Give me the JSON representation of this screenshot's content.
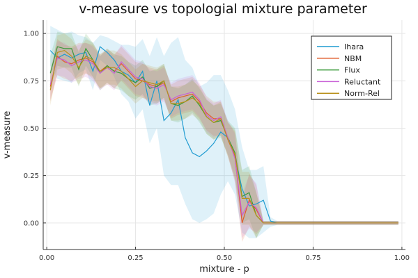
{
  "chart_data": {
    "type": "line",
    "title": "v-measure vs topologial mixture parameter",
    "xlabel": "mixture - p",
    "ylabel": "v-measure",
    "xlim": [
      -0.01,
      1.01
    ],
    "ylim": [
      -0.14,
      1.07
    ],
    "xticks": [
      "0.00",
      "0.25",
      "0.50",
      "0.75",
      "1.00"
    ],
    "yticks": [
      "0.00",
      "0.25",
      "0.50",
      "0.75",
      "1.00"
    ],
    "grid": true,
    "legend_position": "top-right",
    "x": [
      0.01,
      0.03,
      0.05,
      0.07,
      0.09,
      0.11,
      0.13,
      0.15,
      0.17,
      0.19,
      0.21,
      0.23,
      0.25,
      0.27,
      0.29,
      0.31,
      0.33,
      0.35,
      0.37,
      0.39,
      0.41,
      0.43,
      0.45,
      0.47,
      0.49,
      0.51,
      0.53,
      0.55,
      0.57,
      0.59,
      0.61,
      0.63,
      0.65,
      0.67,
      0.69,
      0.71,
      0.73,
      0.75,
      0.77,
      0.79,
      0.81,
      0.83,
      0.85,
      0.87,
      0.89,
      0.91,
      0.93,
      0.95,
      0.97,
      0.99
    ],
    "series": [
      {
        "name": "Ihara",
        "color": "#1f9bd1",
        "band_opacity": 0.14,
        "values": [
          0.91,
          0.87,
          0.89,
          0.87,
          0.89,
          0.9,
          0.8,
          0.93,
          0.9,
          0.86,
          0.8,
          0.78,
          0.74,
          0.8,
          0.62,
          0.75,
          0.54,
          0.58,
          0.65,
          0.45,
          0.37,
          0.35,
          0.38,
          0.42,
          0.48,
          0.45,
          0.35,
          0.18,
          0.09,
          0.1,
          0.12,
          0.01,
          0.0,
          0.0,
          0.0,
          0.0,
          0.0,
          0.0,
          0.0,
          0.0,
          0.0,
          0.0,
          0.0,
          0.0,
          0.0,
          0.0,
          0.0,
          0.0,
          0.0,
          0.0
        ],
        "lower": [
          0.83,
          0.76,
          0.75,
          0.74,
          0.79,
          0.81,
          0.7,
          0.86,
          0.83,
          0.77,
          0.68,
          0.64,
          0.55,
          0.6,
          0.42,
          0.5,
          0.25,
          0.2,
          0.2,
          0.1,
          0.02,
          0.0,
          0.02,
          0.05,
          0.15,
          0.22,
          0.15,
          -0.05,
          -0.08,
          -0.08,
          -0.05,
          -0.02,
          -0.01,
          -0.01,
          -0.01,
          -0.01,
          -0.01,
          -0.01,
          -0.01,
          -0.01,
          -0.01,
          -0.01,
          -0.01,
          -0.01,
          -0.01,
          -0.01,
          -0.01,
          -0.01,
          -0.01,
          -0.01
        ],
        "upper": [
          1.04,
          1.02,
          1.0,
          1.01,
          0.99,
          0.98,
          0.95,
          0.99,
          0.98,
          0.96,
          0.94,
          0.94,
          0.93,
          0.97,
          0.88,
          0.98,
          0.88,
          0.95,
          0.98,
          0.86,
          0.82,
          0.72,
          0.74,
          0.78,
          0.78,
          0.7,
          0.6,
          0.4,
          0.28,
          0.28,
          0.3,
          0.03,
          0.01,
          0.01,
          0.01,
          0.01,
          0.01,
          0.01,
          0.01,
          0.01,
          0.01,
          0.01,
          0.01,
          0.01,
          0.01,
          0.01,
          0.01,
          0.01,
          0.01,
          0.01
        ]
      },
      {
        "name": "NBM",
        "color": "#e05c2b",
        "band_opacity": 0.15,
        "values": [
          0.72,
          0.88,
          0.85,
          0.84,
          0.86,
          0.87,
          0.85,
          0.8,
          0.83,
          0.8,
          0.84,
          0.8,
          0.76,
          0.75,
          0.73,
          0.72,
          0.74,
          0.64,
          0.66,
          0.67,
          0.68,
          0.64,
          0.58,
          0.55,
          0.55,
          0.44,
          0.35,
          0.0,
          0.12,
          0.07,
          0.0,
          0.0,
          0.0,
          0.0,
          0.0,
          0.0,
          0.0,
          0.0,
          0.0,
          0.0,
          0.0,
          0.0,
          0.0,
          0.0,
          0.0,
          0.0,
          0.0,
          0.0,
          0.0,
          0.0
        ],
        "lower": [
          0.64,
          0.78,
          0.76,
          0.75,
          0.77,
          0.79,
          0.76,
          0.71,
          0.74,
          0.71,
          0.75,
          0.71,
          0.67,
          0.66,
          0.64,
          0.63,
          0.65,
          0.55,
          0.57,
          0.58,
          0.59,
          0.55,
          0.49,
          0.46,
          0.46,
          0.35,
          0.22,
          -0.1,
          -0.02,
          -0.06,
          -0.01,
          -0.01,
          -0.01,
          -0.01,
          -0.01,
          -0.01,
          -0.01,
          -0.01,
          -0.01,
          -0.01,
          -0.01,
          -0.01,
          -0.01,
          -0.01,
          -0.01,
          -0.01,
          -0.01,
          -0.01,
          -0.01,
          -0.01
        ],
        "upper": [
          0.8,
          0.97,
          0.94,
          0.93,
          0.95,
          0.95,
          0.94,
          0.89,
          0.92,
          0.89,
          0.93,
          0.89,
          0.85,
          0.84,
          0.82,
          0.81,
          0.83,
          0.73,
          0.75,
          0.76,
          0.77,
          0.73,
          0.67,
          0.64,
          0.64,
          0.53,
          0.48,
          0.12,
          0.26,
          0.2,
          0.01,
          0.01,
          0.01,
          0.01,
          0.01,
          0.01,
          0.01,
          0.01,
          0.01,
          0.01,
          0.01,
          0.01,
          0.01,
          0.01,
          0.01,
          0.01,
          0.01,
          0.01,
          0.01,
          0.01
        ]
      },
      {
        "name": "Flux",
        "color": "#3a9a3a",
        "band_opacity": 0.15,
        "values": [
          0.79,
          0.93,
          0.92,
          0.92,
          0.81,
          0.92,
          0.86,
          0.79,
          0.83,
          0.8,
          0.79,
          0.76,
          0.74,
          0.77,
          0.71,
          0.72,
          0.75,
          0.63,
          0.62,
          0.64,
          0.67,
          0.62,
          0.56,
          0.53,
          0.54,
          0.45,
          0.37,
          0.14,
          0.16,
          0.04,
          0.0,
          0.0,
          0.0,
          0.0,
          0.0,
          0.0,
          0.0,
          0.0,
          0.0,
          0.0,
          0.0,
          0.0,
          0.0,
          0.0,
          0.0,
          0.0,
          0.0,
          0.0,
          0.0,
          0.0
        ],
        "lower": [
          0.7,
          0.83,
          0.82,
          0.82,
          0.72,
          0.83,
          0.77,
          0.7,
          0.74,
          0.71,
          0.7,
          0.67,
          0.65,
          0.68,
          0.62,
          0.63,
          0.66,
          0.54,
          0.53,
          0.55,
          0.58,
          0.53,
          0.47,
          0.44,
          0.45,
          0.36,
          0.24,
          0.0,
          0.02,
          -0.08,
          -0.01,
          -0.01,
          -0.01,
          -0.01,
          -0.01,
          -0.01,
          -0.01,
          -0.01,
          -0.01,
          -0.01,
          -0.01,
          -0.01,
          -0.01,
          -0.01,
          -0.01,
          -0.01,
          -0.01,
          -0.01,
          -0.01,
          -0.01
        ],
        "upper": [
          0.88,
          1.01,
          1.0,
          1.0,
          0.9,
          1.0,
          0.95,
          0.88,
          0.92,
          0.89,
          0.88,
          0.85,
          0.83,
          0.86,
          0.8,
          0.81,
          0.84,
          0.72,
          0.71,
          0.73,
          0.76,
          0.71,
          0.65,
          0.62,
          0.63,
          0.54,
          0.5,
          0.28,
          0.3,
          0.16,
          0.01,
          0.01,
          0.01,
          0.01,
          0.01,
          0.01,
          0.01,
          0.01,
          0.01,
          0.01,
          0.01,
          0.01,
          0.01,
          0.01,
          0.01,
          0.01,
          0.01,
          0.01,
          0.01,
          0.01
        ]
      },
      {
        "name": "Reluctant",
        "color": "#c95fd6",
        "band_opacity": 0.15,
        "values": [
          0.73,
          0.87,
          0.86,
          0.83,
          0.85,
          0.86,
          0.84,
          0.79,
          0.82,
          0.79,
          0.85,
          0.81,
          0.77,
          0.76,
          0.72,
          0.71,
          0.73,
          0.65,
          0.67,
          0.68,
          0.69,
          0.65,
          0.57,
          0.54,
          0.56,
          0.45,
          0.34,
          0.04,
          0.11,
          0.08,
          0.0,
          0.0,
          0.0,
          0.0,
          0.0,
          0.0,
          0.0,
          0.0,
          0.0,
          0.0,
          0.0,
          0.0,
          0.0,
          0.0,
          0.0,
          0.0,
          0.0,
          0.0,
          0.0,
          0.0
        ],
        "lower": [
          0.65,
          0.78,
          0.77,
          0.74,
          0.76,
          0.77,
          0.75,
          0.7,
          0.73,
          0.7,
          0.76,
          0.72,
          0.68,
          0.67,
          0.63,
          0.62,
          0.64,
          0.56,
          0.58,
          0.59,
          0.6,
          0.56,
          0.48,
          0.45,
          0.47,
          0.36,
          0.21,
          -0.08,
          -0.03,
          -0.05,
          -0.01,
          -0.01,
          -0.01,
          -0.01,
          -0.01,
          -0.01,
          -0.01,
          -0.01,
          -0.01,
          -0.01,
          -0.01,
          -0.01,
          -0.01,
          -0.01,
          -0.01,
          -0.01,
          -0.01,
          -0.01,
          -0.01,
          -0.01
        ],
        "upper": [
          0.81,
          0.96,
          0.95,
          0.92,
          0.94,
          0.95,
          0.93,
          0.88,
          0.91,
          0.88,
          0.94,
          0.9,
          0.86,
          0.85,
          0.81,
          0.8,
          0.82,
          0.74,
          0.76,
          0.77,
          0.78,
          0.74,
          0.66,
          0.63,
          0.65,
          0.54,
          0.47,
          0.16,
          0.25,
          0.21,
          0.01,
          0.01,
          0.01,
          0.01,
          0.01,
          0.01,
          0.01,
          0.01,
          0.01,
          0.01,
          0.01,
          0.01,
          0.01,
          0.01,
          0.01,
          0.01,
          0.01,
          0.01,
          0.01,
          0.01
        ]
      },
      {
        "name": "Norm-Rel",
        "color": "#b8901a",
        "band_opacity": 0.15,
        "values": [
          0.7,
          0.9,
          0.91,
          0.88,
          0.82,
          0.88,
          0.86,
          0.8,
          0.82,
          0.82,
          0.8,
          0.76,
          0.72,
          0.75,
          0.74,
          0.73,
          0.75,
          0.63,
          0.63,
          0.64,
          0.66,
          0.63,
          0.56,
          0.53,
          0.55,
          0.44,
          0.36,
          0.13,
          0.13,
          0.04,
          0.0,
          0.0,
          0.0,
          0.0,
          0.0,
          0.0,
          0.0,
          0.0,
          0.0,
          0.0,
          0.0,
          0.0,
          0.0,
          0.0,
          0.0,
          0.0,
          0.0,
          0.0,
          0.0,
          0.0
        ],
        "lower": [
          0.62,
          0.81,
          0.82,
          0.79,
          0.73,
          0.79,
          0.77,
          0.71,
          0.73,
          0.73,
          0.71,
          0.67,
          0.63,
          0.66,
          0.65,
          0.64,
          0.66,
          0.54,
          0.54,
          0.55,
          0.57,
          0.54,
          0.47,
          0.44,
          0.46,
          0.35,
          0.23,
          -0.01,
          -0.01,
          -0.08,
          -0.01,
          -0.01,
          -0.01,
          -0.01,
          -0.01,
          -0.01,
          -0.01,
          -0.01,
          -0.01,
          -0.01,
          -0.01,
          -0.01,
          -0.01,
          -0.01,
          -0.01,
          -0.01,
          -0.01,
          -0.01,
          -0.01,
          -0.01
        ],
        "upper": [
          0.78,
          0.99,
          1.0,
          0.97,
          0.91,
          0.97,
          0.95,
          0.89,
          0.91,
          0.91,
          0.89,
          0.85,
          0.81,
          0.84,
          0.83,
          0.82,
          0.84,
          0.72,
          0.72,
          0.73,
          0.75,
          0.72,
          0.65,
          0.62,
          0.64,
          0.53,
          0.49,
          0.27,
          0.27,
          0.16,
          0.01,
          0.01,
          0.01,
          0.01,
          0.01,
          0.01,
          0.01,
          0.01,
          0.01,
          0.01,
          0.01,
          0.01,
          0.01,
          0.01,
          0.01,
          0.01,
          0.01,
          0.01,
          0.01,
          0.01
        ]
      }
    ]
  }
}
